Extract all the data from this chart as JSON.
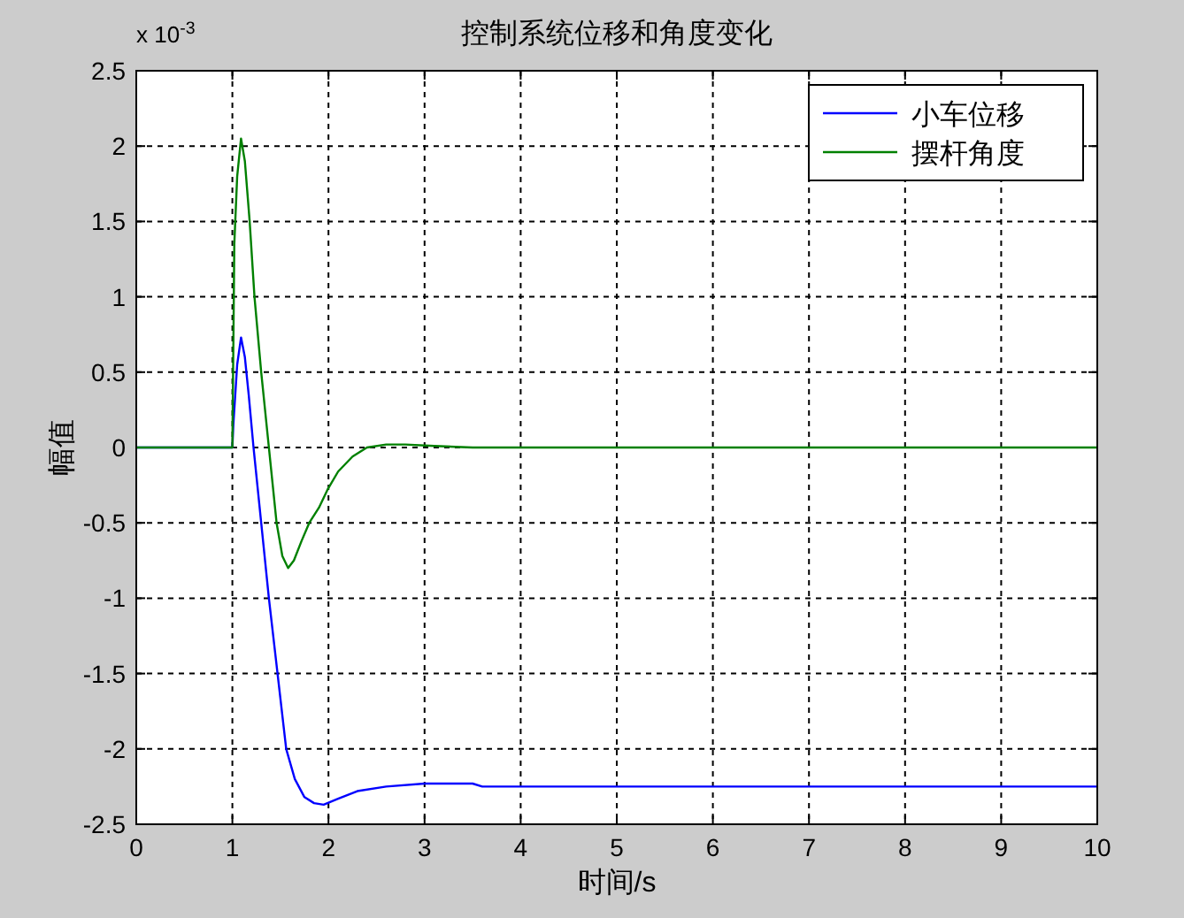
{
  "chart_data": {
    "type": "line",
    "title": "控制系统位移和角度变化",
    "xlabel": "时间/s",
    "ylabel": "幅值",
    "annotations": [
      "x 10$^{-3}$"
    ],
    "xlim": [
      0,
      10
    ],
    "ylim": [
      -2.5,
      2.5
    ],
    "xticks": [
      0,
      1,
      2,
      3,
      4,
      5,
      6,
      7,
      8,
      9,
      10
    ],
    "yticks": [
      -2.5,
      -2,
      -1.5,
      -1,
      -0.5,
      0,
      0.5,
      1,
      1.5,
      2,
      2.5
    ],
    "grid": true,
    "legend": "top right",
    "series": [
      {
        "name": "小车位移",
        "color": "#0000ff",
        "x": [
          0,
          1,
          1.01,
          1.05,
          1.09,
          1.13,
          1.17,
          1.22,
          1.3,
          1.38,
          1.47,
          1.56,
          1.65,
          1.75,
          1.85,
          1.95,
          2.1,
          2.3,
          2.6,
          3,
          3.5,
          3.6,
          5,
          7,
          10
        ],
        "values": [
          0,
          0,
          0.15,
          0.55,
          0.73,
          0.6,
          0.35,
          0,
          -0.5,
          -1.0,
          -1.5,
          -2.0,
          -2.2,
          -2.32,
          -2.36,
          -2.37,
          -2.33,
          -2.28,
          -2.25,
          -2.23,
          -2.23,
          -2.25,
          -2.25,
          -2.25,
          -2.25
        ]
      },
      {
        "name": "摆杆角度",
        "color": "#008000",
        "x": [
          0,
          1,
          1.02,
          1.05,
          1.09,
          1.13,
          1.18,
          1.23,
          1.3,
          1.38,
          1.46,
          1.52,
          1.58,
          1.64,
          1.72,
          1.8,
          1.9,
          1.99,
          2.1,
          2.25,
          2.4,
          2.6,
          2.8,
          3.1,
          3.5,
          5,
          7,
          10
        ],
        "values": [
          0,
          0,
          1.35,
          1.8,
          2.05,
          1.9,
          1.5,
          1.0,
          0.5,
          0,
          -0.5,
          -0.72,
          -0.8,
          -0.75,
          -0.62,
          -0.5,
          -0.4,
          -0.28,
          -0.16,
          -0.06,
          0,
          0.02,
          0.02,
          0.01,
          0,
          0,
          0,
          0
        ]
      }
    ]
  }
}
